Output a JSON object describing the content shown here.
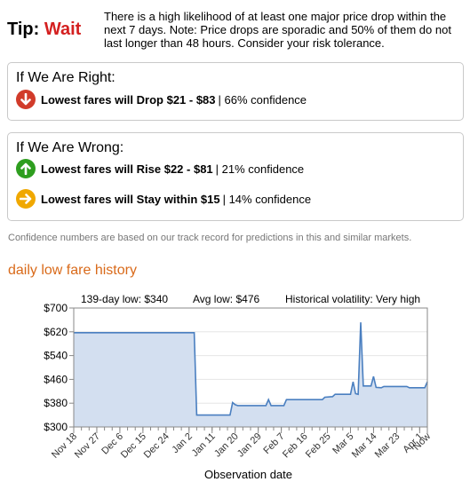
{
  "tip": {
    "label": "Tip:",
    "value": "Wait",
    "text": "There is a high likelihood of at least one major price drop within the next 7 days. Note: Price drops are sporadic and 50% of them do not last longer than 48 hours. Consider your risk tolerance."
  },
  "right": {
    "title": "If We Are Right:",
    "predictions": [
      {
        "icon": "arrow-down-icon",
        "color": "#d13b2a",
        "text": "Lowest fares will Drop $21 - $83",
        "confidence": "| 66% confidence"
      }
    ]
  },
  "wrong": {
    "title": "If We Are Wrong:",
    "predictions": [
      {
        "icon": "arrow-up-icon",
        "color": "#2e9e1f",
        "text": "Lowest fares will Rise $22 - $81",
        "confidence": "| 21% confidence"
      },
      {
        "icon": "arrow-right-icon",
        "color": "#f0a800",
        "text": "Lowest fares will Stay within $15",
        "confidence": "| 14% confidence"
      }
    ]
  },
  "disclaimer": "Confidence numbers are based on our track record for predictions in this and similar markets.",
  "history": {
    "title": "daily low fare history",
    "stats": {
      "low": "139-day low: $340",
      "avg": "Avg low: $476",
      "volatility": "Historical volatility: Very high"
    }
  },
  "chart_data": {
    "type": "area",
    "title": "",
    "xlabel": "Observation date",
    "ylabel": "",
    "ylim": [
      300,
      700
    ],
    "yticks": [
      300,
      380,
      460,
      540,
      620,
      700
    ],
    "ytick_labels": [
      "$300",
      "$380",
      "$460",
      "$540",
      "$620",
      "$700"
    ],
    "xlim_days": [
      0,
      138
    ],
    "xticks": [
      {
        "day": 0,
        "label": "Nov 18"
      },
      {
        "day": 9,
        "label": "Nov 27"
      },
      {
        "day": 18,
        "label": "Dec 6"
      },
      {
        "day": 27,
        "label": "Dec 15"
      },
      {
        "day": 36,
        "label": "Dec 24"
      },
      {
        "day": 45,
        "label": "Jan 2"
      },
      {
        "day": 54,
        "label": "Jan 11"
      },
      {
        "day": 63,
        "label": "Jan 20"
      },
      {
        "day": 72,
        "label": "Jan 29"
      },
      {
        "day": 81,
        "label": "Feb 7"
      },
      {
        "day": 90,
        "label": "Feb 16"
      },
      {
        "day": 99,
        "label": "Feb 25"
      },
      {
        "day": 108,
        "label": "Mar 5"
      },
      {
        "day": 117,
        "label": "Mar 14"
      },
      {
        "day": 126,
        "label": "Mar 23"
      },
      {
        "day": 135,
        "label": "Apr 1"
      },
      {
        "day": 138,
        "label": "Now"
      }
    ],
    "series": [
      {
        "color": "#4a7fc0",
        "fill": "#d3dff0",
        "points": [
          [
            0,
            617
          ],
          [
            47,
            617
          ],
          [
            48,
            340
          ],
          [
            61,
            340
          ],
          [
            62,
            382
          ],
          [
            63,
            375
          ],
          [
            64,
            372
          ],
          [
            75,
            372
          ],
          [
            76,
            392
          ],
          [
            77,
            372
          ],
          [
            82,
            372
          ],
          [
            83,
            392
          ],
          [
            97,
            392
          ],
          [
            98,
            400
          ],
          [
            101,
            402
          ],
          [
            102,
            410
          ],
          [
            108,
            410
          ],
          [
            109,
            452
          ],
          [
            110,
            412
          ],
          [
            111,
            410
          ],
          [
            112,
            652
          ],
          [
            113,
            438
          ],
          [
            116,
            438
          ],
          [
            117,
            470
          ],
          [
            118,
            433
          ],
          [
            120,
            432
          ],
          [
            121,
            436
          ],
          [
            130,
            436
          ],
          [
            131,
            432
          ],
          [
            137,
            432
          ],
          [
            138,
            452
          ]
        ]
      }
    ]
  }
}
